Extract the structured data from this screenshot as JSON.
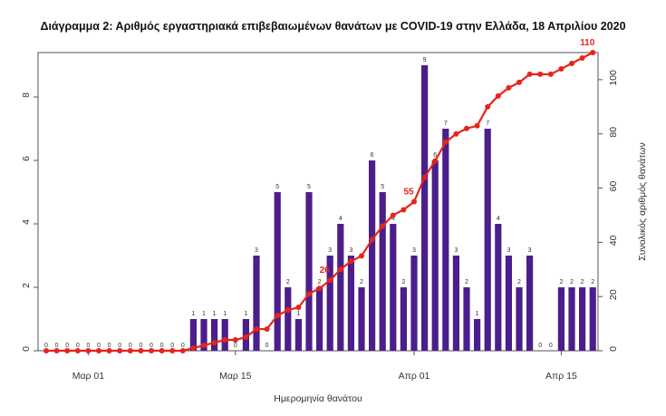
{
  "chart_data": {
    "type": "bar",
    "title": "Διάγραμμα 2: Αριθμός εργαστηριακά επιβεβαιωμένων θανάτων με COVID-19 στην Ελλάδα, 18 Απριλίου 2020",
    "xlabel": "Ημερομηνία θανάτου",
    "ylabel": "",
    "y2label": "Συνολικός αριθμός θανάτων",
    "x_start": "2020-02-26",
    "x_ticks": [
      "Μαρ 01",
      "Μαρ 15",
      "Απρ 01",
      "Απρ 15"
    ],
    "x_tick_dates": [
      "2020-03-01",
      "2020-03-15",
      "2020-04-01",
      "2020-04-15"
    ],
    "ylim": [
      0,
      9.4
    ],
    "y_ticks": [
      0,
      2,
      4,
      6,
      8
    ],
    "y2lim": [
      0,
      110
    ],
    "y2_ticks": [
      0,
      20,
      40,
      60,
      80,
      100
    ],
    "colors": {
      "bars": "#4b1e8c",
      "line": "#e8231b"
    },
    "series": [
      {
        "type": "bar",
        "values": [
          0,
          0,
          0,
          0,
          0,
          0,
          0,
          0,
          0,
          0,
          0,
          0,
          0,
          0,
          1,
          1,
          1,
          1,
          0,
          1,
          3,
          0,
          5,
          2,
          1,
          5,
          2,
          3,
          4,
          3,
          2,
          6,
          5,
          4,
          2,
          3,
          9,
          6,
          7,
          3,
          2,
          1,
          7,
          4,
          3,
          2,
          3,
          0,
          0,
          2,
          2,
          2,
          2
        ]
      },
      {
        "type": "line",
        "values": [
          0,
          0,
          0,
          0,
          0,
          0,
          0,
          0,
          0,
          0,
          0,
          0,
          0,
          0,
          1,
          2,
          3,
          4,
          4,
          5,
          8,
          8,
          13,
          15,
          16,
          21,
          23,
          26,
          30,
          33,
          35,
          41,
          46,
          50,
          52,
          55,
          64,
          70,
          77,
          80,
          82,
          83,
          90,
          94,
          97,
          99,
          102,
          102,
          102,
          104,
          106,
          108,
          110
        ]
      }
    ],
    "annotations": [
      {
        "index": 27,
        "text": "26"
      },
      {
        "index": 35,
        "text": "55"
      },
      {
        "index": 52,
        "text": "110"
      }
    ]
  }
}
